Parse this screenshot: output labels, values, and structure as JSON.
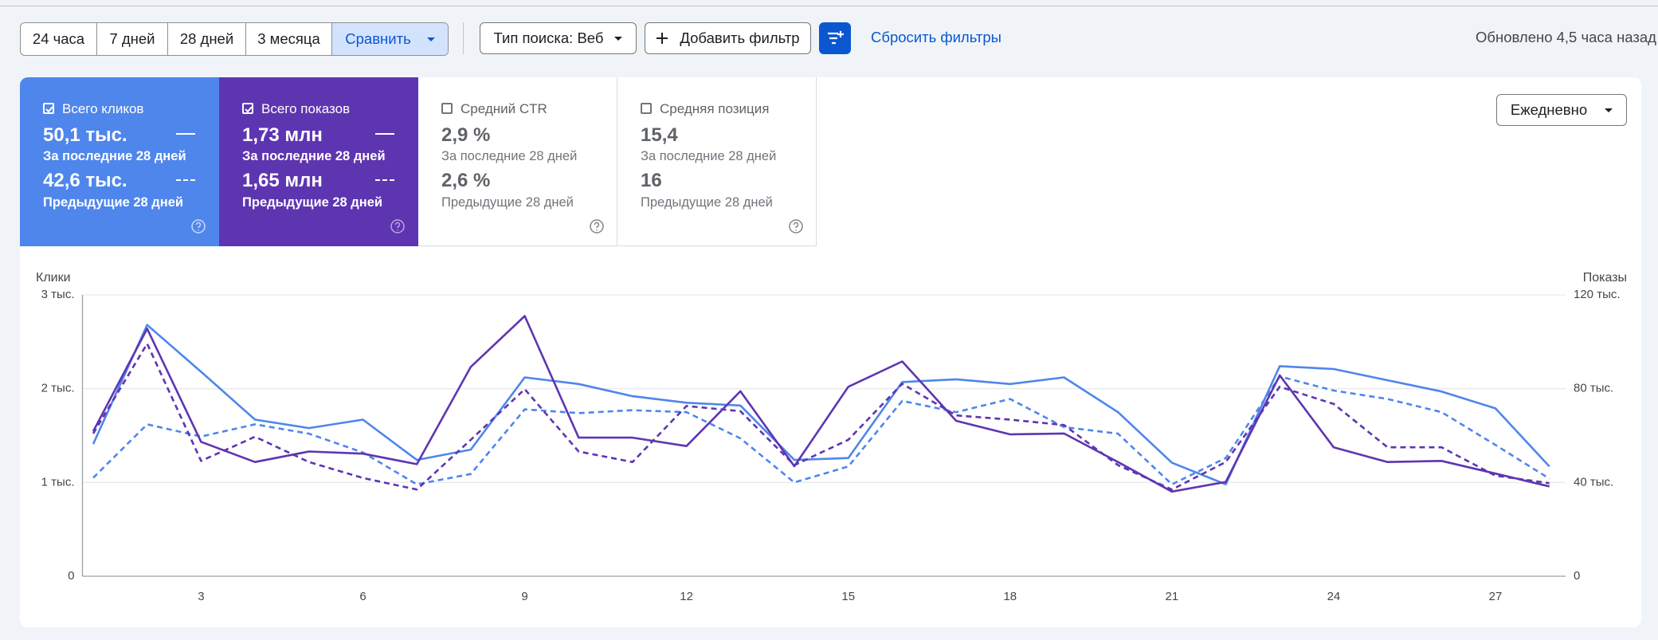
{
  "toolbar": {
    "ranges": [
      "24 часа",
      "7 дней",
      "28 дней",
      "3 месяца"
    ],
    "compare": "Сравнить",
    "search_type": "Тип поиска: Веб",
    "add_filter": "Добавить фильтр",
    "reset": "Сбросить фильтры",
    "updated": "Обновлено 4,5 часа назад"
  },
  "metrics": [
    {
      "current": "50,1 тыс.",
      "current_label": "За последние 28 дней",
      "previous": "42,6 тыс."
    },
    {
      "current": "1,73 млн",
      "current_label": "За последние 28 дней",
      "previous": "1,65 млн"
    },
    {
      "title": "Средний CTR",
      "current": "2,9 %",
      "current_label": "За последние 28 дней",
      "previous": "2,6 %",
      "previous_label": "Предыдущие 28 дней"
    },
    {
      "title": "Средняя позиция",
      "current": "15,4",
      "current_label": "За последние 28 дней",
      "previous": "16",
      "previous_label": "Предыдущие 28 дней"
    }
  ],
  "granularity": "Ежедневно",
  "chart_data": {
    "type": "line",
    "y_label": "Клики",
    "y2_label": "Показы",
    "x": [
      1,
      2,
      3,
      4,
      5,
      6,
      7,
      8,
      9,
      10,
      11,
      12,
      13,
      14,
      15,
      16,
      17,
      18,
      19,
      20,
      21,
      22,
      23,
      24,
      25,
      26,
      27,
      28
    ],
    "xlim": [
      0.8,
      28.3
    ],
    "xticks": [
      3,
      6,
      9,
      12,
      15,
      18,
      21,
      24,
      27
    ],
    "ylim": [
      0,
      3000
    ],
    "yticks": [
      0,
      {
        "value": 1000,
        "label": "1 тыс."
      },
      {
        "value": 2000,
        "label": "2 тыс."
      },
      {
        "value": 3000,
        "label": "3 тыс."
      }
    ],
    "y2lim": [
      0,
      120000
    ],
    "y2ticks": [
      0,
      {
        "value": 40000,
        "label": "40 тыс."
      },
      {
        "value": 80000,
        "label": "80 тыс."
      },
      {
        "value": 120000,
        "label": "120 тыс."
      }
    ],
    "grid": true,
    "series": [
      {
        "name": "Всего кликов",
        "color": "#4f86ec",
        "dashed": false,
        "values": [
          1410,
          2680,
          2180,
          1670,
          1580,
          1670,
          1240,
          1350,
          2120,
          2050,
          1920,
          1850,
          1820,
          1240,
          1260,
          2070,
          2100,
          2050,
          2120,
          1750,
          1210,
          980,
          2240,
          2210,
          2090,
          1970,
          1790,
          1170
        ]
      },
      {
        "name": "Предыдущие 28 дней",
        "color": "#4f86ec",
        "dashed": true,
        "values": [
          1050,
          1620,
          1490,
          1620,
          1520,
          1320,
          980,
          1090,
          1780,
          1740,
          1770,
          1750,
          1470,
          1000,
          1170,
          1870,
          1750,
          1890,
          1590,
          1520,
          980,
          1260,
          2130,
          1980,
          1890,
          1750,
          1400,
          1040
        ]
      },
      {
        "name": "Всего показов",
        "color": "#5e35b1",
        "dashed": false,
        "axis": "y2",
        "values": [
          61800,
          105600,
          57300,
          48700,
          53200,
          52300,
          47800,
          89300,
          111000,
          59100,
          59100,
          55500,
          78900,
          46900,
          80800,
          91600,
          66300,
          60500,
          60900,
          48700,
          36100,
          40200,
          85700,
          55000,
          48700,
          49200,
          43800,
          38300
        ]
      },
      {
        "name": "Предыдущие 28 дней",
        "color": "#5e35b1",
        "dashed": true,
        "axis": "y2",
        "values": [
          60900,
          99200,
          49200,
          59500,
          48700,
          41900,
          37000,
          58200,
          79800,
          53200,
          48700,
          72600,
          70400,
          47400,
          58200,
          82100,
          68600,
          66800,
          64500,
          47400,
          37000,
          48700,
          80800,
          73500,
          55000,
          55000,
          42900,
          39700
        ]
      }
    ]
  }
}
